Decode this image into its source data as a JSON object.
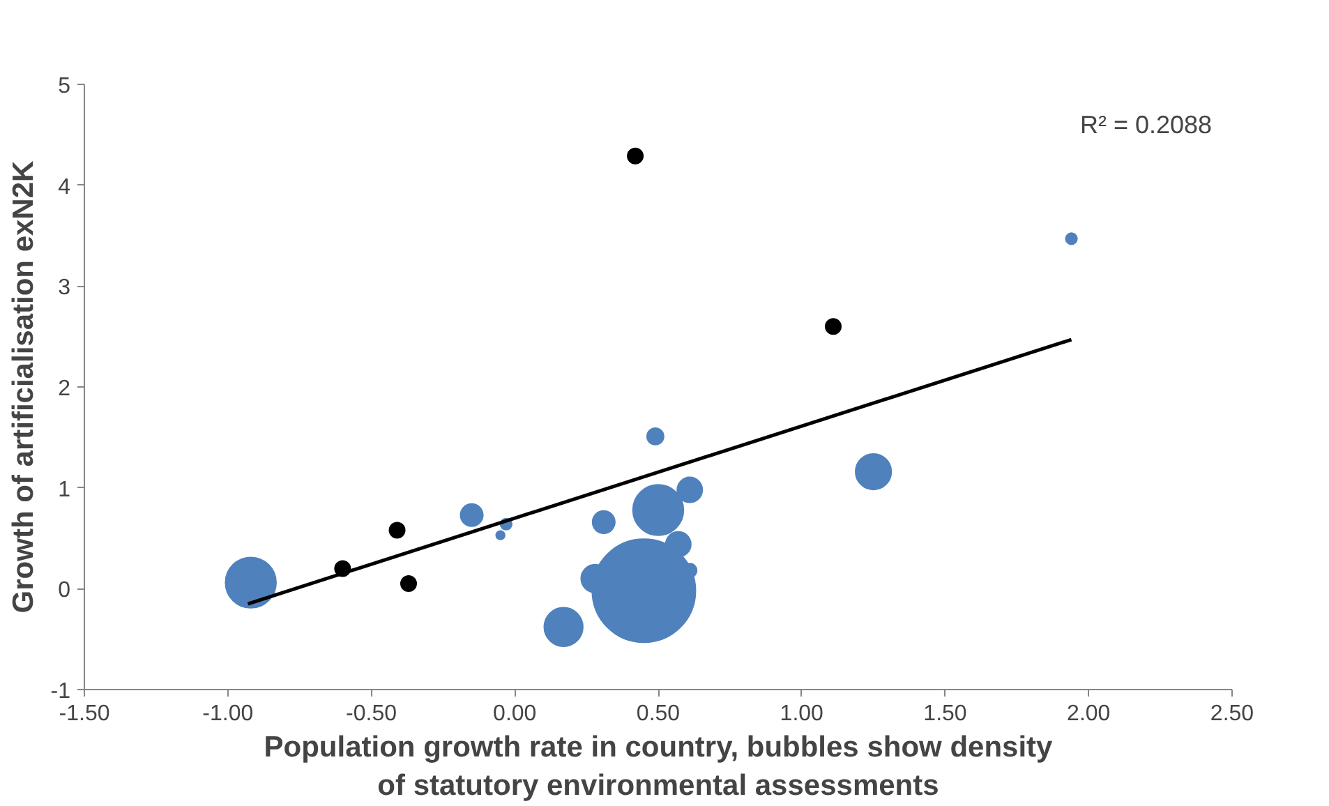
{
  "chart_data": {
    "type": "bubble",
    "xlabel": "Population growth rate in country, bubbles show density of statutory environmental assessments",
    "ylabel": "Growth of artificialisation exN2K",
    "xlim": [
      -1.5,
      2.5
    ],
    "xticks": [
      {
        "value": -1.5,
        "label": "-1.50"
      },
      {
        "value": -1,
        "label": "-1.00"
      },
      {
        "value": -0.5,
        "label": "-0.50"
      },
      {
        "value": 0,
        "label": "0.00"
      },
      {
        "value": 0.5,
        "label": "0.50"
      },
      {
        "value": 1,
        "label": "1.00"
      },
      {
        "value": 1.5,
        "label": "1.50"
      },
      {
        "value": 2,
        "label": "2.00"
      },
      {
        "value": 2.5,
        "label": "2.50"
      }
    ],
    "ylim": [
      -1,
      5
    ],
    "yticks": [
      -1,
      0,
      1,
      2,
      3,
      4,
      5
    ],
    "grid": false,
    "annotations": [
      "R² = 0.2088"
    ],
    "series": [
      {
        "color": "#4f81bd",
        "x": [
          -0.92,
          -0.15,
          -0.03,
          -0.05,
          0.17,
          0.31,
          0.49,
          0.5,
          0.61,
          0.57,
          0.45,
          0.28,
          0.61,
          1.25,
          1.94
        ],
        "values": [
          0.06,
          0.73,
          0.64,
          0.53,
          -0.38,
          0.66,
          1.51,
          0.78,
          0.98,
          0.44,
          -0.02,
          0.1,
          0.18,
          1.16,
          3.47
        ],
        "sizes": [
          0.24,
          0.047,
          0.012,
          0.007,
          0.14,
          0.047,
          0.026,
          0.24,
          0.059,
          0.059,
          1,
          0.073,
          0.018,
          0.12,
          0.012
        ]
      },
      {
        "type": "scatter",
        "color": "#000000",
        "marker": "circle",
        "x": [
          -0.6,
          -0.41,
          -0.37,
          0.42,
          1.11
        ],
        "values": [
          0.2,
          0.58,
          0.05,
          4.29,
          2.6
        ]
      },
      {
        "type": "line",
        "color": "#000000",
        "x": [
          -0.93,
          1.94
        ],
        "values": [
          -0.15,
          2.47
        ]
      }
    ]
  }
}
